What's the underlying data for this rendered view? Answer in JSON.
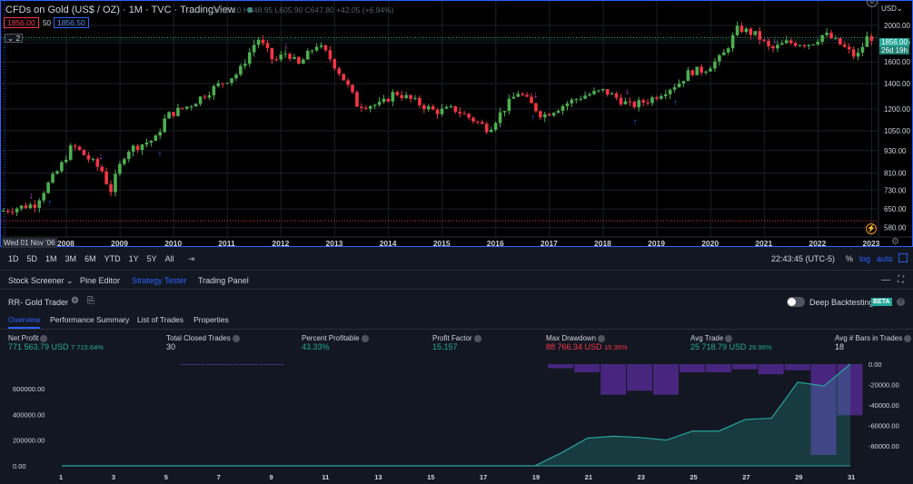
{
  "header": {
    "title": "CFDs on Gold (US$ / OZ) · 1M · TVC · TradingView",
    "ohlc": {
      "o_label": "O",
      "o": "606.10",
      "h_label": "H",
      "h": "648.95",
      "l_label": "L",
      "l": "605.90",
      "c_label": "C",
      "c": "647.80",
      "change": "+42.05 (+6.94%)"
    },
    "sell_price": "1856.00",
    "spread": "50",
    "buy_price": "1856.50",
    "indicator_badge": "2",
    "currency": "USD",
    "last_price_tag": "1856.00",
    "countdown_tag": "26d 19h",
    "cursor_date": "Wed 01 Nov '06"
  },
  "price_axis": [
    {
      "label": "2000.00",
      "value": 2000
    },
    {
      "label": "1800.00",
      "value": 1800
    },
    {
      "label": "1600.00",
      "value": 1600
    },
    {
      "label": "1400.00",
      "value": 1400
    },
    {
      "label": "1200.00",
      "value": 1200
    },
    {
      "label": "1050.00",
      "value": 1050
    },
    {
      "label": "930.00",
      "value": 930
    },
    {
      "label": "810.00",
      "value": 810
    },
    {
      "label": "730.00",
      "value": 730
    },
    {
      "label": "650.00",
      "value": 650
    },
    {
      "label": "580.00",
      "value": 580
    }
  ],
  "time_axis": [
    "2008",
    "2009",
    "2010",
    "2011",
    "2012",
    "2013",
    "2014",
    "2015",
    "2016",
    "2017",
    "2018",
    "2019",
    "2020",
    "2021",
    "2022",
    "2023"
  ],
  "timeframe_bar": {
    "buttons": [
      "1D",
      "5D",
      "1M",
      "3M",
      "6M",
      "YTD",
      "1Y",
      "5Y",
      "All"
    ],
    "clock": "22:43:45 (UTC-5)",
    "percent": "%",
    "log": "log",
    "auto": "auto"
  },
  "bottom_tabs": [
    "Stock Screener",
    "Pine Editor",
    "Strategy Tester",
    "Trading Panel"
  ],
  "strategy": {
    "name": "RR- Gold Trader",
    "deep_backtesting": "Deep Backtesting",
    "beta": "BETA",
    "sub_tabs": [
      "Overview",
      "Performance Summary",
      "List of Trades",
      "Properties"
    ],
    "stats": [
      {
        "label": "Net Profit",
        "value": "771 563.79 USD",
        "sub": "7 715.64%",
        "color": "green"
      },
      {
        "label": "Total Closed Trades",
        "value": "30",
        "sub": "",
        "color": "white"
      },
      {
        "label": "Percent Profitable",
        "value": "43.33%",
        "sub": "",
        "color": "green"
      },
      {
        "label": "Profit Factor",
        "value": "15.157",
        "sub": "",
        "color": "green"
      },
      {
        "label": "Max Drawdown",
        "value": "88 766.34 USD",
        "sub": "15.35%",
        "color": "red"
      },
      {
        "label": "Avg Trade",
        "value": "25 718.79 USD",
        "sub": "26.95%",
        "color": "green"
      },
      {
        "label": "Avg # Bars in Trades",
        "value": "18",
        "sub": "",
        "color": "white"
      }
    ]
  },
  "chart_data": {
    "type": "area",
    "x": [
      1,
      2,
      3,
      4,
      5,
      6,
      7,
      8,
      9,
      10,
      11,
      12,
      13,
      14,
      15,
      16,
      17,
      18,
      19,
      20,
      21,
      22,
      23,
      24,
      25,
      26,
      27,
      28,
      29,
      30,
      31
    ],
    "equity": [
      0,
      0,
      0,
      0,
      0,
      0,
      0,
      0,
      0,
      0,
      0,
      0,
      0,
      0,
      0,
      0,
      0,
      0,
      0,
      100000,
      215000,
      230000,
      220000,
      200000,
      270000,
      270000,
      360000,
      370000,
      650000,
      620000,
      790000
    ],
    "drawdown": [
      0,
      0,
      0,
      0,
      0,
      -500,
      -500,
      -500,
      -500,
      0,
      0,
      0,
      0,
      0,
      0,
      0,
      0,
      0,
      0,
      -4000,
      -8000,
      -30000,
      -26000,
      -30000,
      -8000,
      -8000,
      -5000,
      -10000,
      -6000,
      -88766,
      -50000
    ],
    "left_ticks": [
      {
        "label": "0.00",
        "value": 0
      },
      {
        "label": "200000.00",
        "value": 200000
      },
      {
        "label": "400000.00",
        "value": 400000
      },
      {
        "label": "600000.00",
        "value": 600000
      }
    ],
    "right_ticks": [
      {
        "label": "0.00",
        "value": 0
      },
      {
        "label": "-20000.00",
        "value": -20000
      },
      {
        "label": "-40000.00",
        "value": -40000
      },
      {
        "label": "-60000.00",
        "value": -60000
      },
      {
        "label": "-80000.00",
        "value": -80000
      }
    ],
    "x_ticks": [
      "1",
      "3",
      "5",
      "7",
      "9",
      "11",
      "13",
      "15",
      "17",
      "19",
      "21",
      "23",
      "25",
      "27",
      "29",
      "31"
    ]
  },
  "colors": {
    "up": "#4caf50",
    "down": "#f23645",
    "accent": "#2962ff",
    "equity": "#26a69a",
    "drawdown": "#5b2c9f",
    "signal_buy": "#2962ff",
    "signal_sell": "#e040fb"
  }
}
